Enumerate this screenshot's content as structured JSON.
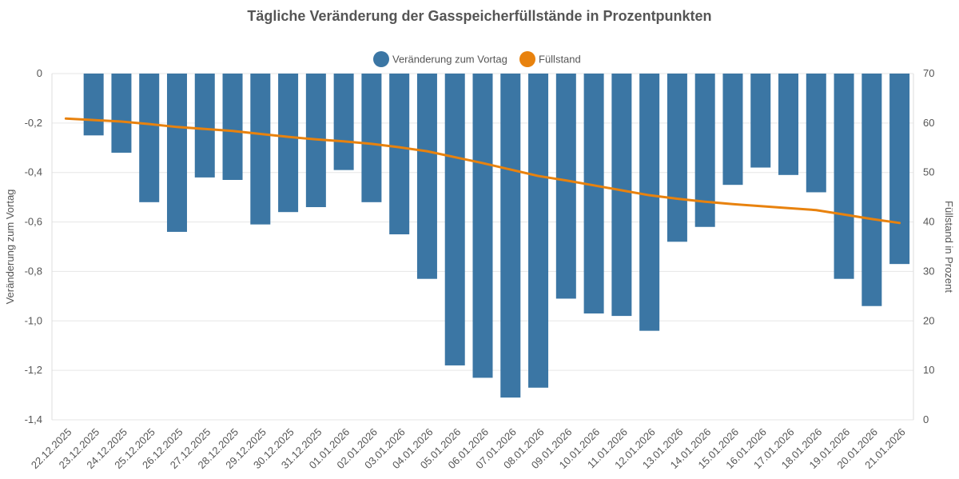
{
  "chart_data": {
    "type": "bar",
    "title": "Tägliche Veränderung der Gasspeicherfüllstände in Prozentpunkten",
    "categories": [
      "22.12.2025",
      "23.12.2025",
      "24.12.2025",
      "25.12.2025",
      "26.12.2025",
      "27.12.2025",
      "28.12.2025",
      "29.12.2025",
      "30.12.2025",
      "31.12.2025",
      "01.01.2026",
      "02.01.2026",
      "03.01.2026",
      "04.01.2026",
      "05.01.2026",
      "06.01.2026",
      "07.01.2026",
      "08.01.2026",
      "09.01.2026",
      "10.01.2026",
      "11.01.2026",
      "12.01.2026",
      "13.01.2026",
      "14.01.2026",
      "15.01.2026",
      "16.01.2026",
      "17.01.2026",
      "18.01.2026",
      "19.01.2026",
      "20.01.2026",
      "21.01.2026"
    ],
    "series": [
      {
        "name": "Veränderung zum Vortag",
        "type": "bar",
        "axis": "left",
        "color": "#3b76a4",
        "values": [
          null,
          -0.25,
          -0.32,
          -0.52,
          -0.64,
          -0.42,
          -0.43,
          -0.61,
          -0.56,
          -0.54,
          -0.39,
          -0.52,
          -0.65,
          -0.83,
          -1.18,
          -1.23,
          -1.31,
          -1.27,
          -0.91,
          -0.97,
          -0.98,
          -1.04,
          -0.68,
          -0.62,
          -0.45,
          -0.38,
          -0.41,
          -0.48,
          -0.83,
          -0.94,
          -0.77
        ]
      },
      {
        "name": "Füllstand",
        "type": "line",
        "axis": "right",
        "color": "#e8820e",
        "values": [
          60.9,
          60.6,
          60.3,
          59.8,
          59.2,
          58.8,
          58.4,
          57.8,
          57.2,
          56.7,
          56.3,
          55.8,
          55.1,
          54.3,
          53.1,
          51.9,
          50.6,
          49.3,
          48.4,
          47.4,
          46.4,
          45.4,
          44.7,
          44.1,
          43.6,
          43.2,
          42.8,
          42.4,
          41.5,
          40.6,
          39.8
        ]
      }
    ],
    "ylabel": "Veränderung zum Vortag",
    "ylabel_right": "Füllstand in Prozent",
    "ylim": [
      -1.4,
      0
    ],
    "ylim_right": [
      0,
      70
    ],
    "y_ticks": [
      "0",
      "-0,2",
      "-0,4",
      "-0,6",
      "-0,8",
      "-1,0",
      "-1,2",
      "-1,4"
    ],
    "y_ticks_right": [
      "70",
      "60",
      "50",
      "40",
      "30",
      "20",
      "10",
      "0"
    ],
    "legend_position": "top-center",
    "grid": true
  }
}
